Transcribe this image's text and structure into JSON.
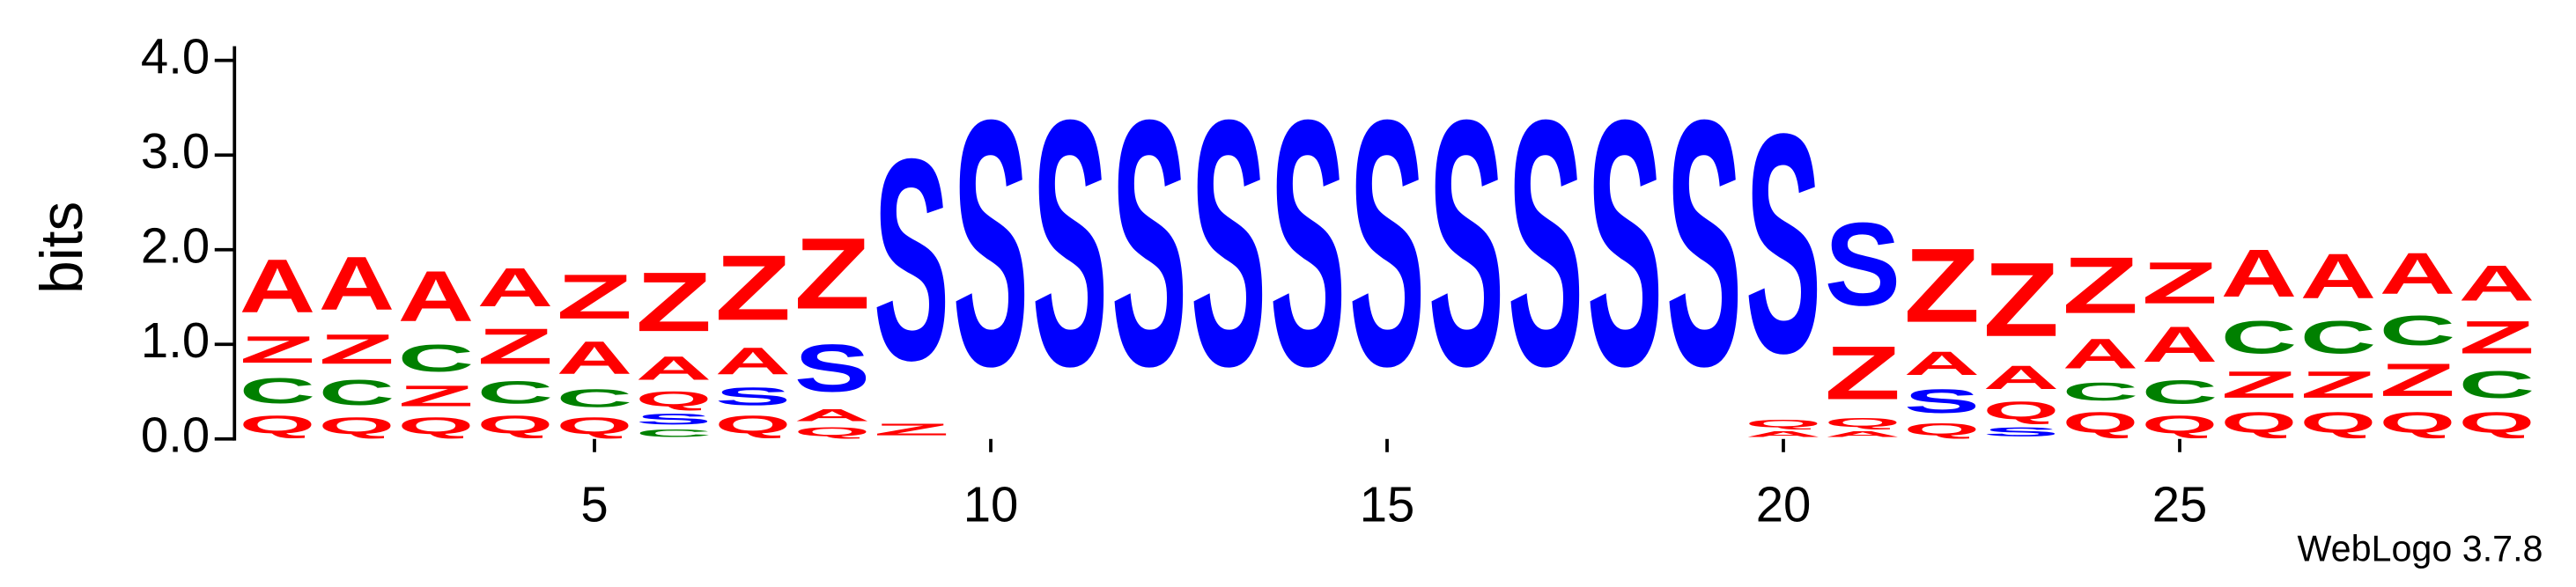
{
  "chart_data": {
    "type": "logo",
    "ylabel": "bits",
    "footer": "WebLogo 3.7.8",
    "xlim": [
      0.5,
      29.5
    ],
    "xticks": [
      5,
      10,
      15,
      20,
      25
    ],
    "ylim": [
      0,
      4.15
    ],
    "yticks": [
      {
        "value": 0,
        "label": "0.0"
      },
      {
        "value": 1,
        "label": "1.0"
      },
      {
        "value": 2,
        "label": "2.0"
      },
      {
        "value": 3,
        "label": "3.0"
      },
      {
        "value": 4,
        "label": "4.0"
      }
    ],
    "colors": {
      "A": "#ff0000",
      "Q": "#ff0000",
      "Z": "#ff0000",
      "C": "#008000",
      "S": "#0000ff"
    },
    "x": [
      1,
      2,
      3,
      4,
      5,
      6,
      7,
      8,
      9,
      10,
      11,
      12,
      13,
      14,
      15,
      16,
      17,
      18,
      19,
      20,
      21,
      22,
      23,
      24,
      25,
      26,
      27,
      28,
      29
    ],
    "stacks": [
      [
        {
          "letter": "Q",
          "height": 0.3
        },
        {
          "letter": "C",
          "height": 0.42
        },
        {
          "letter": "Z",
          "height": 0.45
        },
        {
          "letter": "A",
          "height": 0.9
        }
      ],
      [
        {
          "letter": "Q",
          "height": 0.28
        },
        {
          "letter": "C",
          "height": 0.42
        },
        {
          "letter": "Z",
          "height": 0.5
        },
        {
          "letter": "A",
          "height": 0.9
        }
      ],
      [
        {
          "letter": "Q",
          "height": 0.28
        },
        {
          "letter": "Z",
          "height": 0.35
        },
        {
          "letter": "C",
          "height": 0.45
        },
        {
          "letter": "A",
          "height": 0.85
        }
      ],
      [
        {
          "letter": "Q",
          "height": 0.3
        },
        {
          "letter": "C",
          "height": 0.38
        },
        {
          "letter": "Z",
          "height": 0.6
        },
        {
          "letter": "A",
          "height": 0.65
        }
      ],
      [
        {
          "letter": "Q",
          "height": 0.28
        },
        {
          "letter": "C",
          "height": 0.3
        },
        {
          "letter": "A",
          "height": 0.55
        },
        {
          "letter": "Z",
          "height": 0.75
        }
      ],
      [
        {
          "letter": "C",
          "height": 0.12
        },
        {
          "letter": "S",
          "height": 0.18
        },
        {
          "letter": "Q",
          "height": 0.25
        },
        {
          "letter": "A",
          "height": 0.4
        },
        {
          "letter": "Z",
          "height": 1.0
        }
      ],
      [
        {
          "letter": "Q",
          "height": 0.3
        },
        {
          "letter": "S",
          "height": 0.3
        },
        {
          "letter": "A",
          "height": 0.45
        },
        {
          "letter": "Z",
          "height": 1.1
        }
      ],
      [
        {
          "letter": "Q",
          "height": 0.15
        },
        {
          "letter": "A",
          "height": 0.2
        },
        {
          "letter": "S",
          "height": 0.8
        },
        {
          "letter": "Z",
          "height": 1.2
        }
      ],
      [
        {
          "letter": "Z",
          "height": 0.2
        },
        {
          "letter": "S",
          "height": 3.4
        }
      ],
      [
        {
          "letter": "S",
          "height": 4.15
        }
      ],
      [
        {
          "letter": "S",
          "height": 4.15
        }
      ],
      [
        {
          "letter": "S",
          "height": 4.15
        }
      ],
      [
        {
          "letter": "S",
          "height": 4.15
        }
      ],
      [
        {
          "letter": "S",
          "height": 4.15
        }
      ],
      [
        {
          "letter": "S",
          "height": 4.15
        }
      ],
      [
        {
          "letter": "S",
          "height": 4.15
        }
      ],
      [
        {
          "letter": "S",
          "height": 4.15
        }
      ],
      [
        {
          "letter": "S",
          "height": 4.15
        }
      ],
      [
        {
          "letter": "S",
          "height": 4.15
        }
      ],
      [
        {
          "letter": "A",
          "height": 0.1
        },
        {
          "letter": "Q",
          "height": 0.12
        },
        {
          "letter": "S",
          "height": 3.7
        }
      ],
      [
        {
          "letter": "A",
          "height": 0.1
        },
        {
          "letter": "Q",
          "height": 0.15
        },
        {
          "letter": "Z",
          "height": 0.9
        },
        {
          "letter": "S",
          "height": 1.4
        }
      ],
      [
        {
          "letter": "Q",
          "height": 0.2
        },
        {
          "letter": "S",
          "height": 0.4
        },
        {
          "letter": "A",
          "height": 0.4
        },
        {
          "letter": "Z",
          "height": 1.25
        }
      ],
      [
        {
          "letter": "S",
          "height": 0.15
        },
        {
          "letter": "Q",
          "height": 0.3
        },
        {
          "letter": "A",
          "height": 0.4
        },
        {
          "letter": "Z",
          "height": 1.25
        }
      ],
      [
        {
          "letter": "Q",
          "height": 0.35
        },
        {
          "letter": "C",
          "height": 0.3
        },
        {
          "letter": "A",
          "height": 0.5
        },
        {
          "letter": "Z",
          "height": 0.95
        }
      ],
      [
        {
          "letter": "Q",
          "height": 0.3
        },
        {
          "letter": "C",
          "height": 0.4
        },
        {
          "letter": "A",
          "height": 0.6
        },
        {
          "letter": "Z",
          "height": 0.7
        }
      ],
      [
        {
          "letter": "Q",
          "height": 0.35
        },
        {
          "letter": "Z",
          "height": 0.45
        },
        {
          "letter": "C",
          "height": 0.55
        },
        {
          "letter": "A",
          "height": 0.8
        }
      ],
      [
        {
          "letter": "Q",
          "height": 0.35
        },
        {
          "letter": "Z",
          "height": 0.45
        },
        {
          "letter": "C",
          "height": 0.55
        },
        {
          "letter": "A",
          "height": 0.75
        }
      ],
      [
        {
          "letter": "Q",
          "height": 0.35
        },
        {
          "letter": "Z",
          "height": 0.55
        },
        {
          "letter": "C",
          "height": 0.5
        },
        {
          "letter": "A",
          "height": 0.7
        }
      ],
      [
        {
          "letter": "Q",
          "height": 0.35
        },
        {
          "letter": "C",
          "height": 0.45
        },
        {
          "letter": "Z",
          "height": 0.55
        },
        {
          "letter": "A",
          "height": 0.6
        }
      ]
    ]
  }
}
